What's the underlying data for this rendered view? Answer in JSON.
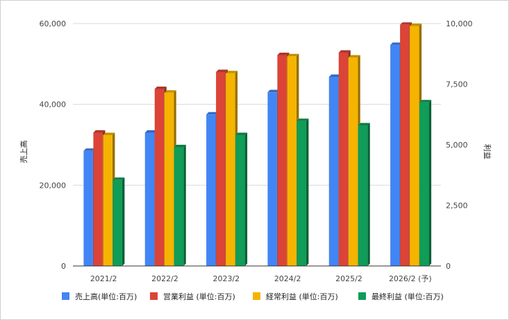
{
  "chart_data": {
    "type": "bar",
    "categories": [
      "2021/2",
      "2022/2",
      "2023/2",
      "2024/2",
      "2025/2",
      "2026/2 (予)"
    ],
    "series": [
      {
        "name": "売上高(単位:百万)",
        "axis": "left",
        "color": "#4285f4",
        "values": [
          28500,
          33000,
          37500,
          43000,
          46800,
          54700
        ]
      },
      {
        "name": "営業利益 (単位:百万)",
        "axis": "right",
        "color": "#db4437",
        "values": [
          5500,
          7300,
          8000,
          8700,
          8800,
          9950
        ]
      },
      {
        "name": "経常利益 (単位:百万)",
        "axis": "right",
        "color": "#f4b400",
        "values": [
          5400,
          7150,
          7950,
          8650,
          8600,
          9900
        ]
      },
      {
        "name": "最終利益 (単位:百万)",
        "axis": "right",
        "color": "#0f9d58",
        "values": [
          3550,
          4900,
          5400,
          5980,
          5800,
          6750
        ]
      }
    ],
    "ylabel": "売上高",
    "ylim": [
      0,
      60000
    ],
    "yticks": [
      "0",
      "20,000",
      "40,000",
      "60,000"
    ],
    "yticks_values": [
      0,
      20000,
      40000,
      60000
    ],
    "y2label": "利益",
    "y2lim": [
      0,
      10000
    ],
    "y2ticks": [
      "0",
      "2,500",
      "5,000",
      "7,500",
      "10,000"
    ],
    "y2ticks_values": [
      0,
      2500,
      5000,
      7500,
      10000
    ],
    "grid": true,
    "legend_position": "bottom"
  }
}
